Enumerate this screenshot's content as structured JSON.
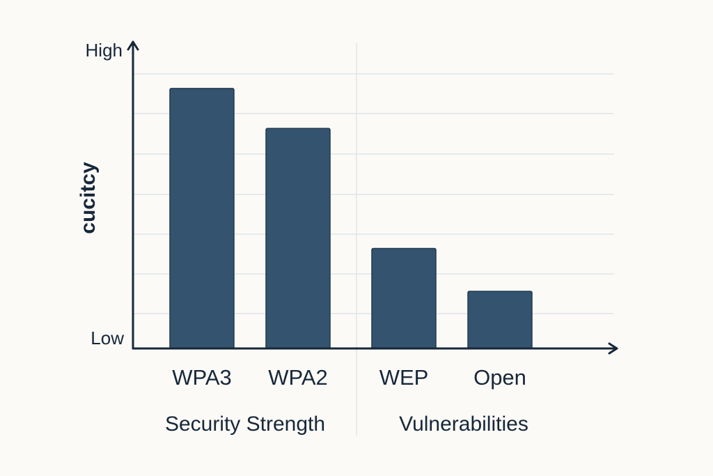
{
  "chart_data": {
    "type": "bar",
    "title": "",
    "xlabel": "",
    "ylabel": "cucitcy",
    "categories": [
      "WPA3",
      "WPA2",
      "WEP",
      "Open"
    ],
    "values": [
      91,
      77,
      35,
      20
    ],
    "ylim": [
      0,
      100
    ],
    "ytick_labels": {
      "top": "High",
      "bottom": "Low"
    },
    "grid": true,
    "groups": [
      {
        "label": "Security Strength",
        "categories": [
          "WPA3",
          "WPA2"
        ]
      },
      {
        "label": "Vulnerabilities",
        "categories": [
          "WEP",
          "Open"
        ]
      }
    ],
    "colors": {
      "bar": "#34536f",
      "axis": "#17273a",
      "grid": "#dfe4ec",
      "background": "#fbfaf6"
    }
  }
}
